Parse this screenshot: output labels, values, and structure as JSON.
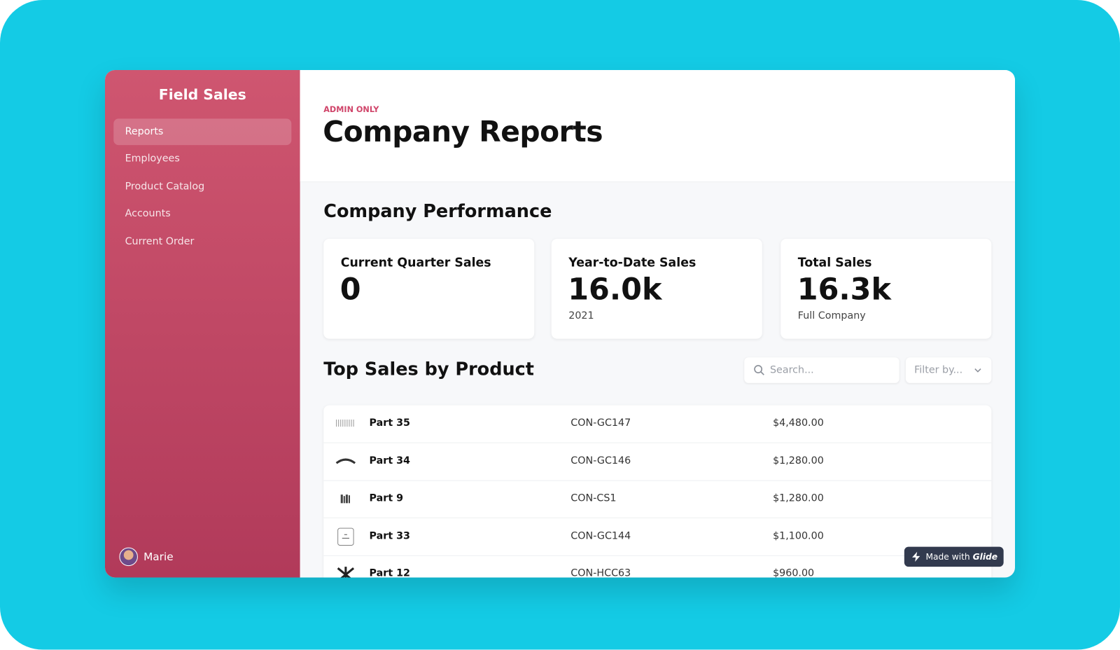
{
  "sidebar": {
    "title": "Field Sales",
    "nav": [
      "Reports",
      "Employees",
      "Product Catalog",
      "Accounts",
      "Current Order"
    ],
    "active": 0,
    "user": "Marie"
  },
  "header": {
    "eyebrow": "ADMIN ONLY",
    "title": "Company Reports"
  },
  "performance": {
    "title": "Company Performance",
    "cards": [
      {
        "title": "Current Quarter Sales",
        "value": "0",
        "sub": null
      },
      {
        "title": "Year-to-Date Sales",
        "value": "16.0k",
        "sub": "2021"
      },
      {
        "title": "Total Sales",
        "value": "16.3k",
        "sub": "Full Company"
      }
    ]
  },
  "table": {
    "title": "Top Sales by Product",
    "search": "Search...",
    "filter": "Filter by...",
    "rows": [
      [
        "Part 35",
        "CON-GC147",
        "$4,480.00"
      ],
      [
        "Part 34",
        "CON-GC146",
        "$1,280.00"
      ],
      [
        "Part 9",
        "CON-CS1",
        "$1,280.00"
      ],
      [
        "Part 33",
        "CON-GC144",
        "$1,100.00"
      ],
      [
        "Part 12",
        "CON-HCC63",
        "$960.00"
      ]
    ]
  },
  "badge": {
    "prefix": "Made with",
    "brand": "Glide"
  }
}
